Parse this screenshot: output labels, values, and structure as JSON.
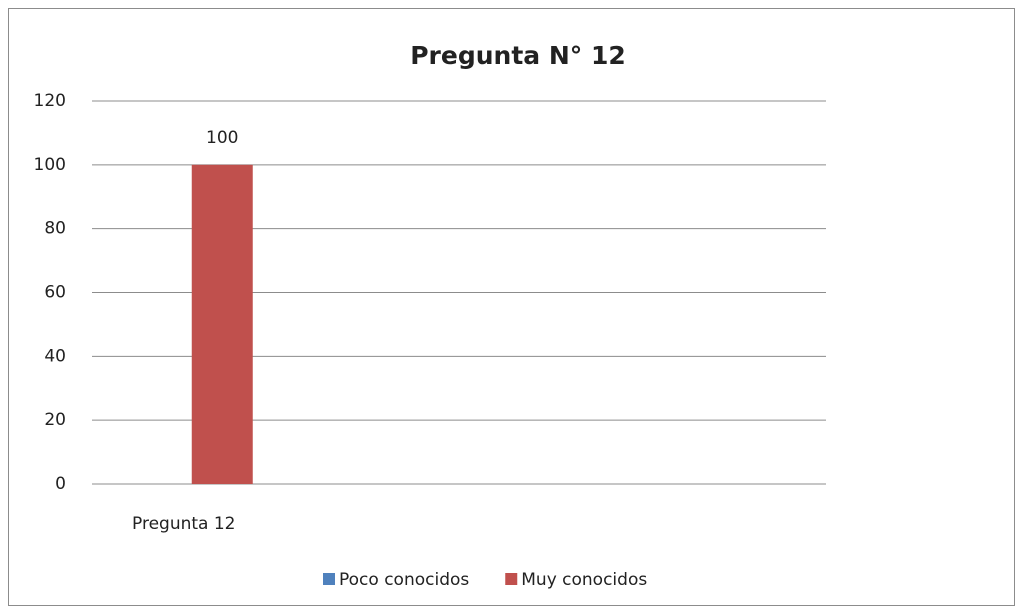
{
  "chart_data": {
    "type": "bar",
    "title": "Pregunta N° 12",
    "categories": [
      "Pregunta 12",
      null,
      null,
      null
    ],
    "series": [
      {
        "name": "Poco conocidos",
        "color": "#4f81bd",
        "values": [
          null,
          null,
          null,
          null
        ]
      },
      {
        "name": "Muy conocidos",
        "color": "#c0504d",
        "values": [
          100,
          null,
          null,
          null
        ]
      }
    ],
    "ylim": [
      0,
      120
    ],
    "yticks": [
      0,
      20,
      40,
      60,
      80,
      100,
      120
    ],
    "grid": true,
    "data_labels": true,
    "legend": "bottom"
  }
}
